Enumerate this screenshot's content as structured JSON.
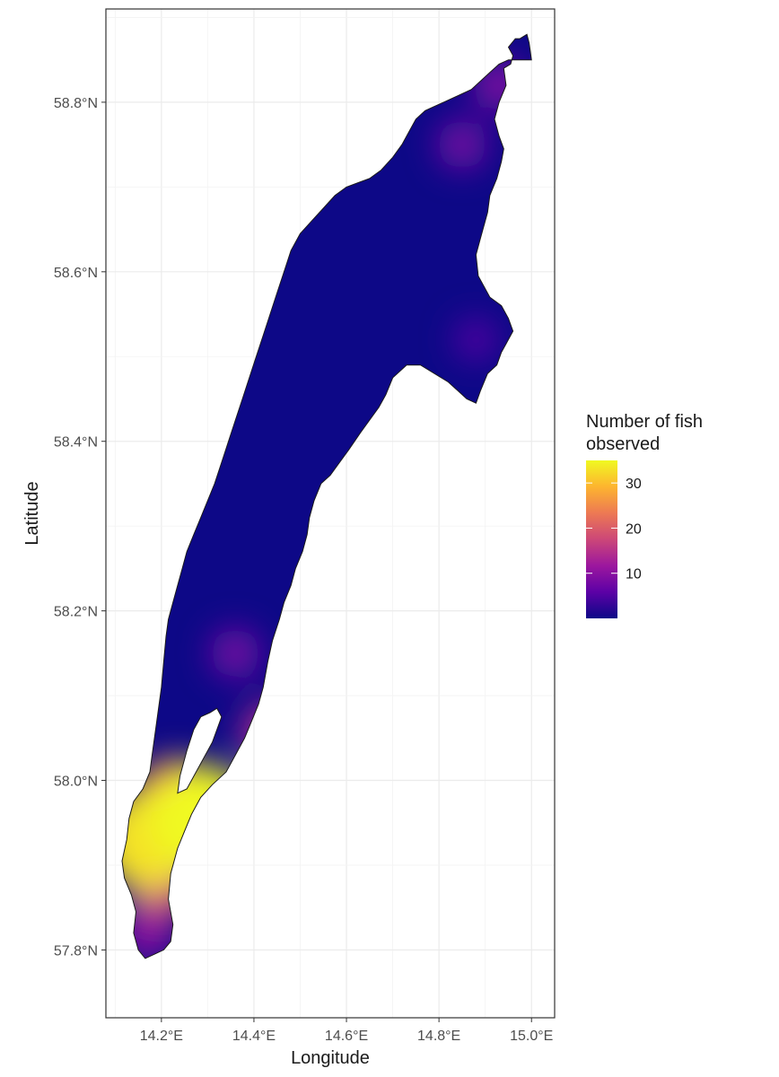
{
  "chart_data": {
    "type": "heatmap",
    "title": "",
    "xlabel": "Longitude",
    "ylabel": "Latitude",
    "x_ticks": [
      "14.2°E",
      "14.4°E",
      "14.6°E",
      "14.8°E",
      "15.0°E"
    ],
    "x_tick_values": [
      14.2,
      14.4,
      14.6,
      14.8,
      15.0
    ],
    "y_ticks": [
      "57.8°N",
      "58.0°N",
      "58.2°N",
      "58.4°N",
      "58.6°N",
      "58.8°N"
    ],
    "y_tick_values": [
      57.8,
      58.0,
      58.2,
      58.4,
      58.6,
      58.8
    ],
    "xlim": [
      14.08,
      15.05
    ],
    "ylim": [
      57.72,
      58.91
    ],
    "grid": true,
    "legend": {
      "title_line1": "Number of fish",
      "title_line2": "observed",
      "placement": "right",
      "ticks": [
        "30",
        "20",
        "10"
      ],
      "tick_values": [
        30,
        20,
        10
      ],
      "range": [
        0,
        35
      ]
    },
    "colormap": [
      "#0d0887",
      "#5c01a6",
      "#9c179e",
      "#cc4778",
      "#ed7953",
      "#fdb42f",
      "#f0f921"
    ],
    "lake_outline": [
      [
        15.0,
        58.85
      ],
      [
        14.995,
        58.87
      ],
      [
        14.99,
        58.88
      ],
      [
        14.975,
        58.875
      ],
      [
        14.965,
        58.875
      ],
      [
        14.95,
        58.865
      ],
      [
        14.96,
        58.855
      ],
      [
        14.955,
        58.845
      ],
      [
        14.94,
        58.84
      ],
      [
        14.945,
        58.82
      ],
      [
        14.93,
        58.8
      ],
      [
        14.92,
        58.78
      ],
      [
        14.93,
        58.76
      ],
      [
        14.94,
        58.745
      ],
      [
        14.935,
        58.73
      ],
      [
        14.925,
        58.71
      ],
      [
        14.91,
        58.69
      ],
      [
        14.905,
        58.67
      ],
      [
        14.89,
        58.64
      ],
      [
        14.88,
        58.62
      ],
      [
        14.885,
        58.595
      ],
      [
        14.91,
        58.57
      ],
      [
        14.935,
        58.56
      ],
      [
        14.95,
        58.545
      ],
      [
        14.96,
        58.53
      ],
      [
        14.945,
        58.515
      ],
      [
        14.935,
        58.505
      ],
      [
        14.925,
        58.49
      ],
      [
        14.905,
        58.48
      ],
      [
        14.89,
        58.46
      ],
      [
        14.88,
        58.445
      ],
      [
        14.86,
        58.45
      ],
      [
        14.84,
        58.46
      ],
      [
        14.82,
        58.47
      ],
      [
        14.79,
        58.48
      ],
      [
        14.76,
        58.49
      ],
      [
        14.73,
        58.49
      ],
      [
        14.7,
        58.475
      ],
      [
        14.685,
        58.455
      ],
      [
        14.67,
        58.44
      ],
      [
        14.65,
        58.425
      ],
      [
        14.63,
        58.41
      ],
      [
        14.605,
        58.39
      ],
      [
        14.585,
        58.375
      ],
      [
        14.565,
        58.36
      ],
      [
        14.545,
        58.35
      ],
      [
        14.53,
        58.33
      ],
      [
        14.52,
        58.31
      ],
      [
        14.515,
        58.29
      ],
      [
        14.505,
        58.27
      ],
      [
        14.49,
        58.25
      ],
      [
        14.48,
        58.23
      ],
      [
        14.465,
        58.21
      ],
      [
        14.455,
        58.19
      ],
      [
        14.44,
        58.165
      ],
      [
        14.43,
        58.14
      ],
      [
        14.42,
        58.11
      ],
      [
        14.41,
        58.09
      ],
      [
        14.395,
        58.07
      ],
      [
        14.38,
        58.05
      ],
      [
        14.36,
        58.03
      ],
      [
        14.34,
        58.01
      ],
      [
        14.31,
        57.995
      ],
      [
        14.285,
        57.98
      ],
      [
        14.265,
        57.96
      ],
      [
        14.25,
        57.94
      ],
      [
        14.235,
        57.92
      ],
      [
        14.22,
        57.89
      ],
      [
        14.215,
        57.86
      ],
      [
        14.225,
        57.83
      ],
      [
        14.22,
        57.81
      ],
      [
        14.205,
        57.8
      ],
      [
        14.185,
        57.795
      ],
      [
        14.165,
        57.79
      ],
      [
        14.15,
        57.8
      ],
      [
        14.14,
        57.82
      ],
      [
        14.145,
        57.845
      ],
      [
        14.135,
        57.865
      ],
      [
        14.12,
        57.885
      ],
      [
        14.115,
        57.905
      ],
      [
        14.125,
        57.93
      ],
      [
        14.13,
        57.955
      ],
      [
        14.14,
        57.975
      ],
      [
        14.16,
        57.99
      ],
      [
        14.175,
        58.01
      ],
      [
        14.18,
        58.03
      ],
      [
        14.185,
        58.05
      ],
      [
        14.19,
        58.07
      ],
      [
        14.195,
        58.09
      ],
      [
        14.2,
        58.11
      ],
      [
        14.205,
        58.14
      ],
      [
        14.21,
        58.17
      ],
      [
        14.215,
        58.19
      ],
      [
        14.225,
        58.21
      ],
      [
        14.235,
        58.23
      ],
      [
        14.245,
        58.25
      ],
      [
        14.255,
        58.27
      ],
      [
        14.27,
        58.29
      ],
      [
        14.285,
        58.31
      ],
      [
        14.3,
        58.33
      ],
      [
        14.315,
        58.35
      ],
      [
        14.33,
        58.375
      ],
      [
        14.345,
        58.4
      ],
      [
        14.36,
        58.425
      ],
      [
        14.375,
        58.45
      ],
      [
        14.39,
        58.475
      ],
      [
        14.405,
        58.5
      ],
      [
        14.42,
        58.525
      ],
      [
        14.435,
        58.55
      ],
      [
        14.45,
        58.575
      ],
      [
        14.465,
        58.6
      ],
      [
        14.48,
        58.625
      ],
      [
        14.5,
        58.645
      ],
      [
        14.525,
        58.66
      ],
      [
        14.55,
        58.675
      ],
      [
        14.575,
        58.69
      ],
      [
        14.6,
        58.7
      ],
      [
        14.625,
        58.705
      ],
      [
        14.65,
        58.71
      ],
      [
        14.675,
        58.72
      ],
      [
        14.7,
        58.735
      ],
      [
        14.72,
        58.75
      ],
      [
        14.735,
        58.765
      ],
      [
        14.75,
        58.78
      ],
      [
        14.77,
        58.79
      ],
      [
        14.79,
        58.795
      ],
      [
        14.81,
        58.8
      ],
      [
        14.83,
        58.805
      ],
      [
        14.85,
        58.81
      ],
      [
        14.87,
        58.815
      ],
      [
        14.89,
        58.825
      ],
      [
        14.91,
        58.835
      ],
      [
        14.93,
        58.845
      ],
      [
        14.95,
        58.85
      ],
      [
        14.97,
        58.85
      ]
    ],
    "island": [
      [
        14.285,
        58.075
      ],
      [
        14.305,
        58.08
      ],
      [
        14.32,
        58.085
      ],
      [
        14.33,
        58.075
      ],
      [
        14.31,
        58.045
      ],
      [
        14.28,
        58.015
      ],
      [
        14.255,
        57.99
      ],
      [
        14.235,
        57.985
      ],
      [
        14.24,
        58.005
      ],
      [
        14.255,
        58.035
      ],
      [
        14.27,
        58.06
      ]
    ],
    "hotspots": [
      {
        "lon": 14.29,
        "lat": 57.955,
        "value": 35
      },
      {
        "lon": 14.17,
        "lat": 57.93,
        "value": 33
      },
      {
        "lon": 14.23,
        "lat": 57.975,
        "value": 25
      },
      {
        "lon": 14.2,
        "lat": 57.88,
        "value": 18
      },
      {
        "lon": 14.44,
        "lat": 58.055,
        "value": 14
      },
      {
        "lon": 14.17,
        "lat": 57.82,
        "value": 10
      },
      {
        "lon": 14.36,
        "lat": 58.15,
        "value": 8
      },
      {
        "lon": 14.85,
        "lat": 58.75,
        "value": 8
      },
      {
        "lon": 14.93,
        "lat": 58.82,
        "value": 9
      },
      {
        "lon": 14.88,
        "lat": 58.52,
        "value": 5
      }
    ]
  }
}
